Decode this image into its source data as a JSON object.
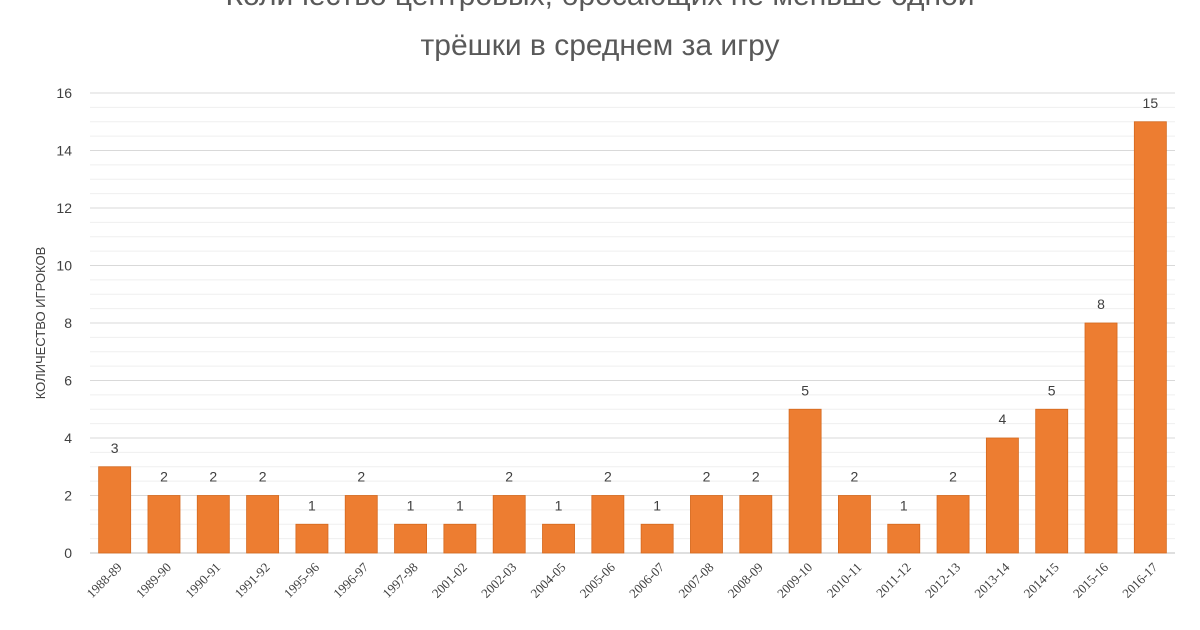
{
  "chart_data": {
    "type": "bar",
    "title_lines": [
      "Количество центровых, бросающих не меньше одной",
      "трёшки в среднем за игру"
    ],
    "xlabel": "",
    "ylabel": "КОЛИЧЕСТВО ИГРОКОВ",
    "categories": [
      "1988-89",
      "1989-90",
      "1990-91",
      "1991-92",
      "1995-96",
      "1996-97",
      "1997-98",
      "2001-02",
      "2002-03",
      "2004-05",
      "2005-06",
      "2006-07",
      "2007-08",
      "2008-09",
      "2009-10",
      "2010-11",
      "2011-12",
      "2012-13",
      "2013-14",
      "2014-15",
      "2015-16",
      "2016-17"
    ],
    "values": [
      3,
      2,
      2,
      2,
      1,
      2,
      1,
      1,
      2,
      1,
      2,
      1,
      2,
      2,
      5,
      2,
      1,
      2,
      4,
      5,
      8,
      15
    ],
    "ylim": [
      0,
      16
    ],
    "y_major_ticks": [
      0,
      2,
      4,
      6,
      8,
      10,
      12,
      14,
      16
    ],
    "grid": "major and minor horizontal",
    "data_labels": true,
    "legend": "none",
    "colors": {
      "bar": "#ED7D31",
      "bar_border": "#D4691F",
      "grid_major": "#D9D9D9",
      "grid_minor": "#EFEFEF",
      "text": "#404040",
      "title": "#595959"
    }
  }
}
